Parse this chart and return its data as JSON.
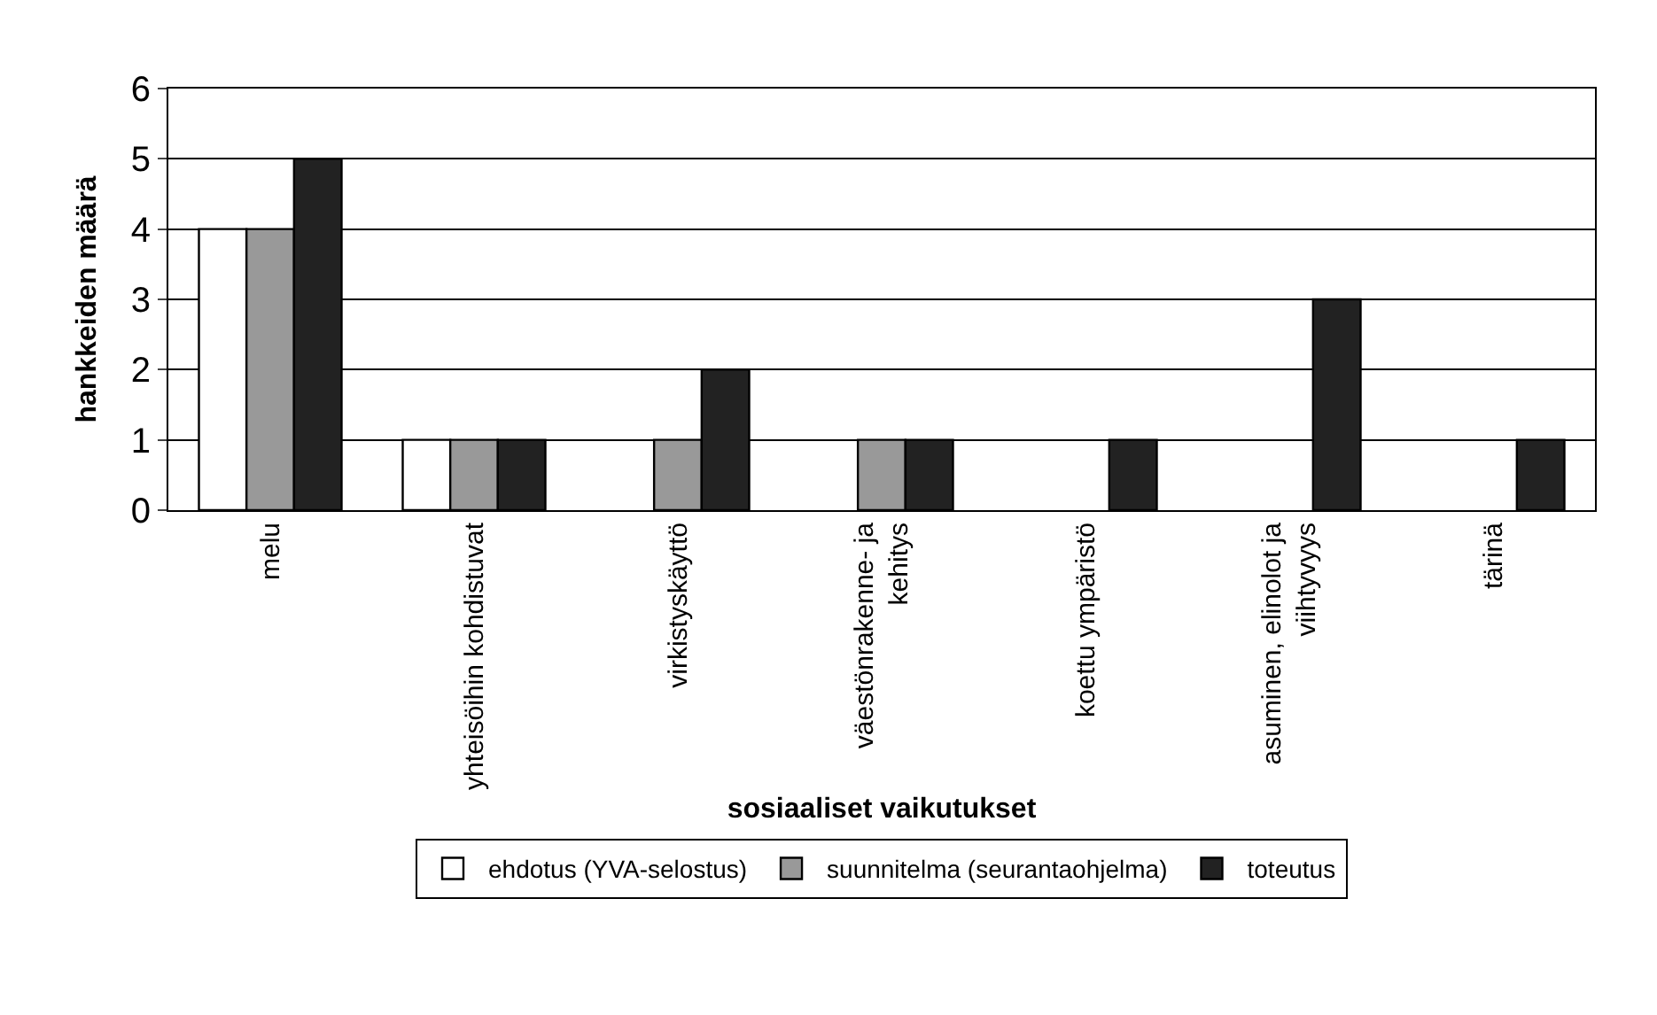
{
  "chart_data": {
    "type": "bar",
    "xlabel": "sosiaaliset vaikutukset",
    "ylabel": "hankkeiden määrä",
    "categories": [
      "melu",
      "yhteisöihin kohdistuvat",
      "virkistyskäyttö",
      "väestönrakenne- ja\nkehitys",
      "koettu ympäristö",
      "asuminen, elinolot ja\nviihtyvyys",
      "tärinä"
    ],
    "series": [
      {
        "name": "ehdotus (YVA-selostus)",
        "color": "#ffffff",
        "values": [
          4,
          1,
          null,
          null,
          null,
          null,
          null
        ]
      },
      {
        "name": "suunnitelma (seurantaohjelma)",
        "color": "#999999",
        "values": [
          4,
          1,
          1,
          1,
          null,
          null,
          null
        ]
      },
      {
        "name": "toteutus",
        "color": "#222222",
        "values": [
          5,
          1,
          2,
          1,
          1,
          3,
          1
        ]
      }
    ],
    "ylim": [
      0,
      6
    ],
    "yticks": [
      0,
      1,
      2,
      3,
      4,
      5,
      6
    ],
    "grid": "y",
    "legend": "bottom"
  }
}
